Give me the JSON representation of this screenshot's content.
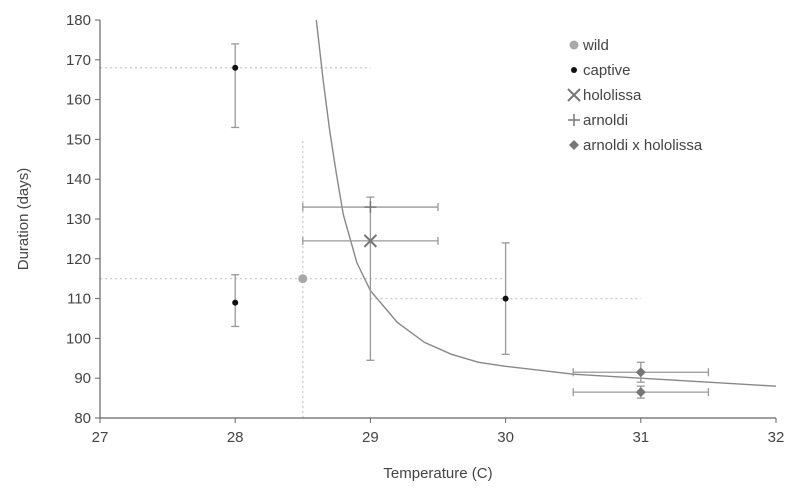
{
  "chart_data": {
    "type": "scatter",
    "xlabel": "Temperature (C)",
    "ylabel": "Duration (days)",
    "xlim": [
      27,
      32
    ],
    "ylim": [
      80,
      180
    ],
    "x_ticks": [
      27,
      28,
      29,
      30,
      31,
      32
    ],
    "y_ticks": [
      80,
      90,
      100,
      110,
      120,
      130,
      140,
      150,
      160,
      170,
      180
    ],
    "grid": false,
    "legend_placement": "top-right",
    "legend": [
      {
        "key": "wild",
        "label": "wild",
        "marker": "circle-gray"
      },
      {
        "key": "captive",
        "label": "captive",
        "marker": "circle-black"
      },
      {
        "key": "hololissa",
        "label": "hololissa",
        "marker": "x"
      },
      {
        "key": "arnoldi",
        "label": "arnoldi",
        "marker": "plus"
      },
      {
        "key": "arnoldi_x_hololissa",
        "label": "arnoldi x hololissa",
        "marker": "diamond"
      }
    ],
    "series": [
      {
        "name": "wild",
        "points": [
          {
            "x": 28.5,
            "y": 115,
            "y_low": 80,
            "y_high": 150,
            "x_low": 27,
            "x_high": 30
          }
        ]
      },
      {
        "name": "captive",
        "points": [
          {
            "x": 28,
            "y": 168,
            "y_low": 153,
            "y_high": 174,
            "x_low": 27,
            "x_high": 29
          },
          {
            "x": 28,
            "y": 109,
            "y_low": 103,
            "y_high": 116
          },
          {
            "x": 30,
            "y": 110,
            "y_low": 96,
            "y_high": 124,
            "x_low": 29,
            "x_high": 31
          }
        ]
      },
      {
        "name": "hololissa",
        "points": [
          {
            "x": 29,
            "y": 124.5,
            "y_low": 94.5,
            "y_high": 135.5,
            "x_low": 28.5,
            "x_high": 29.5
          }
        ]
      },
      {
        "name": "arnoldi",
        "points": [
          {
            "x": 29,
            "y": 133,
            "x_low": 28.5,
            "x_high": 29.5
          }
        ]
      },
      {
        "name": "arnoldi x hololissa",
        "points": [
          {
            "x": 31,
            "y": 91.5,
            "y_low": 89,
            "y_high": 94,
            "x_low": 30.5,
            "x_high": 31.5
          },
          {
            "x": 31,
            "y": 86.5,
            "y_low": 85,
            "y_high": 88,
            "x_low": 30.5,
            "x_high": 31.5
          }
        ]
      }
    ],
    "fit_curve": {
      "description": "Fitted curve through the points",
      "points": [
        [
          28.6,
          180
        ],
        [
          28.65,
          165
        ],
        [
          28.7,
          152
        ],
        [
          28.75,
          141
        ],
        [
          28.8,
          131
        ],
        [
          28.9,
          119
        ],
        [
          29.0,
          112
        ],
        [
          29.2,
          104
        ],
        [
          29.4,
          99
        ],
        [
          29.6,
          96
        ],
        [
          29.8,
          94
        ],
        [
          30.0,
          93
        ],
        [
          30.5,
          91
        ],
        [
          31.0,
          90
        ],
        [
          31.5,
          89
        ],
        [
          32.0,
          88
        ]
      ]
    }
  }
}
